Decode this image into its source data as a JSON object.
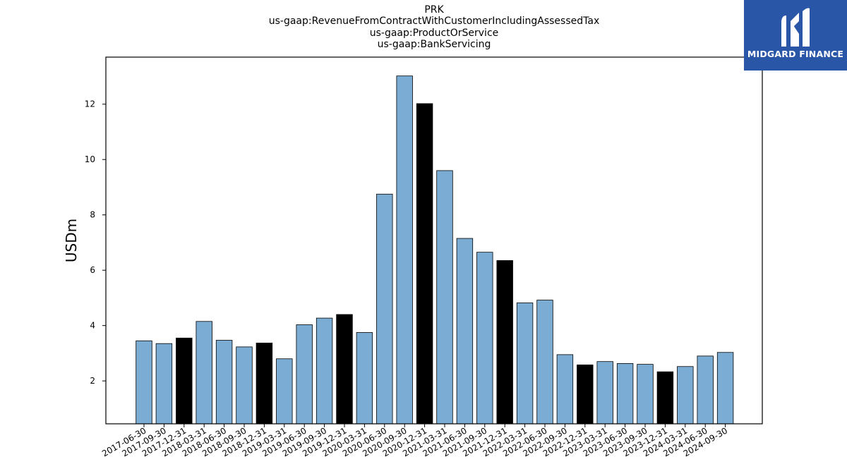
{
  "titles": {
    "line1": "PRK",
    "line2": "us-gaap:RevenueFromContractWithCustomerIncludingAssessedTax",
    "line3": "us-gaap:ProductOrService",
    "line4": "us-gaap:BankServicing"
  },
  "logo": {
    "text": "MIDGARD FINANCE",
    "bg_color": "#2a56a8"
  },
  "chart_data": {
    "type": "bar",
    "ylabel": "USDm",
    "ylim": [
      0.45,
      13.7
    ],
    "yticks": [
      2,
      4,
      6,
      8,
      10,
      12
    ],
    "colors": {
      "regular": "#7bacd3",
      "highlight": "#000000"
    },
    "categories": [
      "2017-06-30",
      "2017-09-30",
      "2017-12-31",
      "2018-03-31",
      "2018-06-30",
      "2018-09-30",
      "2018-12-31",
      "2019-03-31",
      "2019-06-30",
      "2019-09-30",
      "2019-12-31",
      "2020-03-31",
      "2020-06-30",
      "2020-09-30",
      "2020-12-31",
      "2021-03-31",
      "2021-06-30",
      "2021-09-30",
      "2021-12-31",
      "2022-03-31",
      "2022-06-30",
      "2022-09-30",
      "2022-12-31",
      "2023-03-31",
      "2023-06-30",
      "2023-09-30",
      "2023-12-31",
      "2024-03-31",
      "2024-06-30",
      "2024-09-30"
    ],
    "values": [
      3.45,
      3.35,
      3.55,
      4.15,
      3.47,
      3.23,
      3.37,
      2.8,
      4.03,
      4.27,
      4.4,
      3.75,
      8.75,
      13.02,
      12.02,
      9.6,
      7.15,
      6.65,
      6.35,
      4.82,
      4.92,
      2.95,
      2.58,
      2.7,
      2.63,
      2.6,
      2.33,
      2.52,
      2.9,
      3.03
    ],
    "highlight": [
      false,
      false,
      true,
      false,
      false,
      false,
      true,
      false,
      false,
      false,
      true,
      false,
      false,
      false,
      true,
      false,
      false,
      false,
      true,
      false,
      false,
      false,
      true,
      false,
      false,
      false,
      true,
      false,
      false,
      false
    ]
  }
}
